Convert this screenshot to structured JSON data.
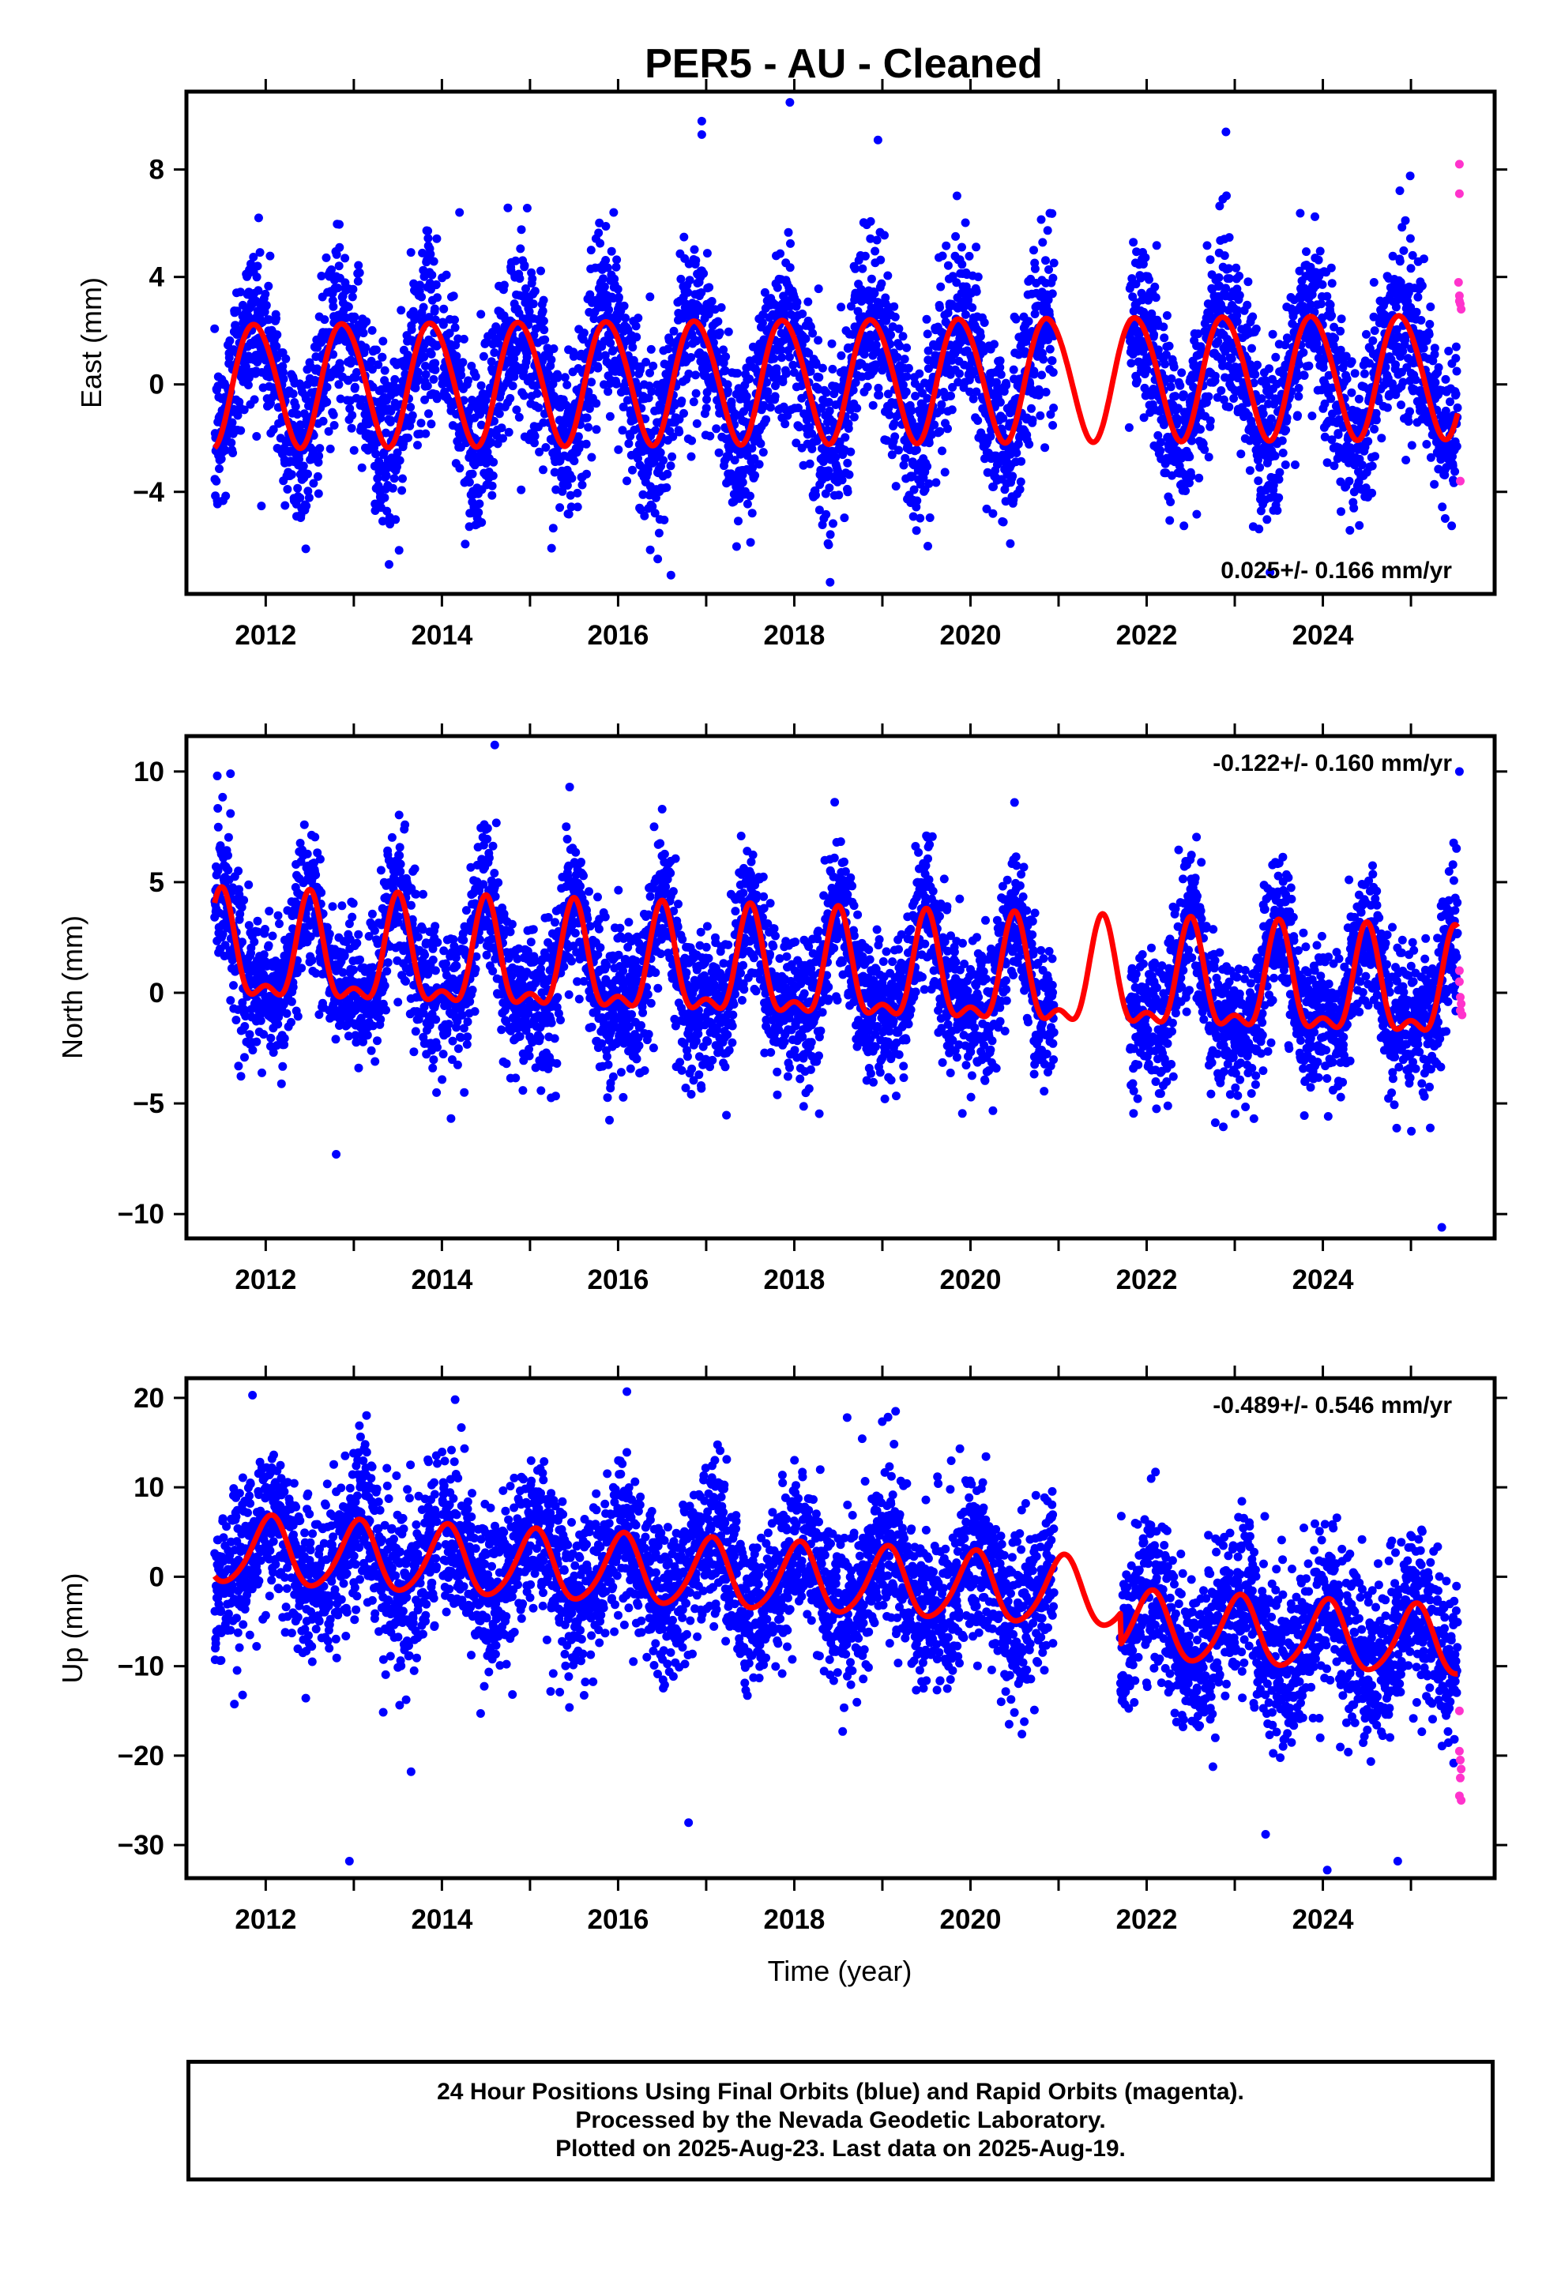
{
  "figure": {
    "title": "PER5  - AU - Cleaned",
    "xlabel": "Time (year)"
  },
  "chart_data": [
    {
      "type": "scatter",
      "panel": "east",
      "ylabel": "East (mm)",
      "xlim": [
        2011.1,
        2025.95
      ],
      "ylim": [
        -7.8,
        10.9
      ],
      "yticks": [
        8,
        4,
        0,
        -4
      ],
      "ytick_labels": [
        "8",
        "4",
        "0",
        "−4"
      ],
      "xticks": [
        2012,
        2014,
        2016,
        2018,
        2020,
        2022,
        2024
      ],
      "xtick_labels": [
        "2012",
        "2014",
        "2016",
        "2018",
        "2020",
        "2022",
        "2024"
      ],
      "rate_text": "0.025+/- 0.166 mm/yr",
      "rate_position": "bottom-right",
      "model": {
        "offset": 0.0,
        "trend": 0.025,
        "annual_amp": 2.3,
        "annual_peak": 0.88,
        "semi_amp": 0.15,
        "semi_peak": 0.2,
        "noise_sd": 1.6
      },
      "data_gap": [
        2020.95,
        2021.8
      ],
      "outliers": [
        [
          2017.95,
          10.5
        ],
        [
          2016.95,
          9.8
        ],
        [
          2016.95,
          9.3
        ],
        [
          2018.95,
          9.1
        ],
        [
          2022.9,
          9.4
        ],
        [
          2011.92,
          6.2
        ],
        [
          2015.95,
          6.4
        ],
        [
          2013.4,
          -6.7
        ],
        [
          2016.6,
          -7.1
        ],
        [
          2016.45,
          -6.5
        ],
        [
          2023.4,
          -7.0
        ],
        [
          2014.2,
          6.4
        ]
      ],
      "rapid_points": [
        [
          2025.55,
          8.2
        ],
        [
          2025.55,
          7.1
        ],
        [
          2025.54,
          3.8
        ],
        [
          2025.55,
          3.3
        ],
        [
          2025.56,
          3.0
        ],
        [
          2025.57,
          2.8
        ],
        [
          2025.55,
          3.1
        ],
        [
          2025.56,
          -3.6
        ]
      ],
      "series": [
        {
          "name": "Final Orbits",
          "color": "#0000ff"
        },
        {
          "name": "Rapid Orbits",
          "color": "#ff33cc"
        },
        {
          "name": "model fit",
          "color": "#ff0000"
        }
      ]
    },
    {
      "type": "scatter",
      "panel": "north",
      "ylabel": "North (mm)",
      "xlim": [
        2011.1,
        2025.95
      ],
      "ylim": [
        -11.1,
        11.6
      ],
      "yticks": [
        10,
        5,
        0,
        -5,
        -10
      ],
      "ytick_labels": [
        "10",
        "5",
        "0",
        "−5",
        "−10"
      ],
      "xticks": [
        2012,
        2014,
        2016,
        2018,
        2020,
        2022,
        2024
      ],
      "xtick_labels": [
        "2012",
        "2014",
        "2016",
        "2018",
        "2020",
        "2022",
        "2024"
      ],
      "rate_text": "-0.122+/- 0.160 mm/yr",
      "rate_position": "top-right",
      "model": {
        "offset": 1.6,
        "trend": -0.122,
        "annual_amp": 2.2,
        "annual_peak": 0.5,
        "semi_amp": 1.0,
        "semi_peak": 0.5,
        "noise_sd": 1.6
      },
      "data_gap": [
        2020.95,
        2021.8
      ],
      "outliers": [
        [
          2011.45,
          9.8
        ],
        [
          2011.6,
          9.9
        ],
        [
          2014.6,
          11.2
        ],
        [
          2015.45,
          9.3
        ],
        [
          2020.5,
          8.6
        ],
        [
          2012.8,
          -7.3
        ],
        [
          2025.35,
          -10.6
        ],
        [
          2025.55,
          10.0
        ],
        [
          2011.6,
          8.1
        ],
        [
          2016.5,
          8.3
        ]
      ],
      "rapid_points": [
        [
          2025.55,
          1.0
        ],
        [
          2025.55,
          0.5
        ],
        [
          2025.56,
          -0.2
        ],
        [
          2025.57,
          -0.5
        ],
        [
          2025.56,
          -0.8
        ],
        [
          2025.58,
          -1.0
        ]
      ],
      "series": [
        {
          "name": "Final Orbits",
          "color": "#0000ff"
        },
        {
          "name": "Rapid Orbits",
          "color": "#ff33cc"
        },
        {
          "name": "model fit",
          "color": "#ff0000"
        }
      ]
    },
    {
      "type": "scatter",
      "panel": "up",
      "ylabel": "Up (mm)",
      "xlim": [
        2011.1,
        2025.95
      ],
      "ylim": [
        -33.7,
        22.2
      ],
      "yticks": [
        20,
        10,
        0,
        -10,
        -20,
        -30
      ],
      "ytick_labels": [
        "20",
        "10",
        "0",
        "−10",
        "−20",
        "−30"
      ],
      "xticks": [
        2012,
        2014,
        2016,
        2018,
        2020,
        2022,
        2024
      ],
      "xtick_labels": [
        "2012",
        "2014",
        "2016",
        "2018",
        "2020",
        "2022",
        "2024"
      ],
      "rate_text": "-0.489+/- 0.546 mm/yr",
      "rate_position": "top-right",
      "model": {
        "offset": 3.0,
        "trend": -0.489,
        "annual_amp": 3.8,
        "annual_peak": 0.05,
        "semi_amp": 0.5,
        "semi_peak": 0.1,
        "noise_sd": 4.5,
        "step": [
          2021.7,
          -3.5
        ]
      },
      "data_gap": [
        2020.95,
        2021.7
      ],
      "outliers": [
        [
          2011.85,
          20.3
        ],
        [
          2016.1,
          20.7
        ],
        [
          2014.15,
          19.8
        ],
        [
          2012.95,
          -31.8
        ],
        [
          2016.8,
          -27.5
        ],
        [
          2023.35,
          -28.8
        ],
        [
          2024.05,
          -32.8
        ],
        [
          2024.85,
          -31.8
        ],
        [
          2013.65,
          -21.8
        ],
        [
          2018.6,
          17.8
        ],
        [
          2019.15,
          18.5
        ]
      ],
      "rapid_points": [
        [
          2025.55,
          -15.0
        ],
        [
          2025.55,
          -19.5
        ],
        [
          2025.56,
          -20.5
        ],
        [
          2025.57,
          -21.5
        ],
        [
          2025.56,
          -22.5
        ],
        [
          2025.55,
          -24.5
        ],
        [
          2025.57,
          -25.0
        ]
      ],
      "series": [
        {
          "name": "Final Orbits",
          "color": "#0000ff"
        },
        {
          "name": "Rapid Orbits",
          "color": "#ff33cc"
        },
        {
          "name": "model fit",
          "color": "#ff0000"
        }
      ]
    }
  ],
  "caption": {
    "line1": "24 Hour Positions Using Final Orbits (blue) and Rapid Orbits (magenta).",
    "line2": "Processed by the Nevada Geodetic Laboratory.",
    "line3": "Plotted on 2025-Aug-23. Last data on 2025-Aug-19."
  }
}
